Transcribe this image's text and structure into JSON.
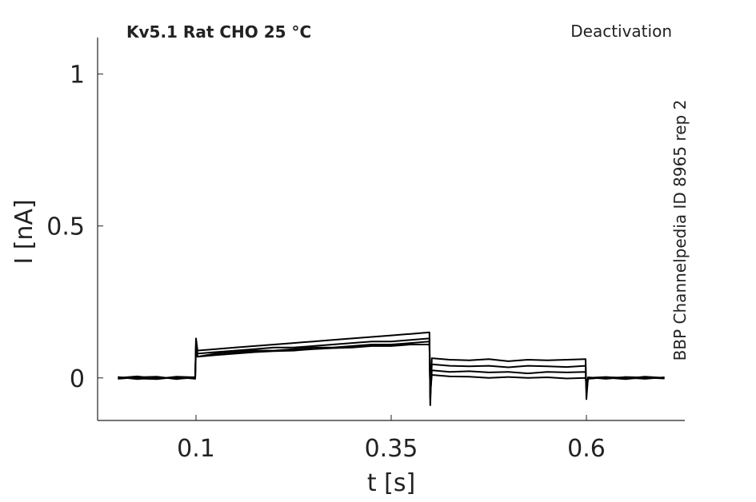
{
  "chart_data": {
    "type": "line",
    "title": "Kv5.1  Rat  CHO  25 °C",
    "annotation": "Deactivation",
    "side_note": "BBP Channelpedia ID 8965 rep 2",
    "xlabel": "t [s]",
    "ylabel": "I [nA]",
    "x": [
      0,
      0.025,
      0.05,
      0.075,
      0.099,
      0.1,
      0.102,
      0.125,
      0.15,
      0.175,
      0.2,
      0.225,
      0.25,
      0.275,
      0.3,
      0.325,
      0.35,
      0.375,
      0.399,
      0.4,
      0.402,
      0.425,
      0.45,
      0.475,
      0.5,
      0.525,
      0.55,
      0.575,
      0.599,
      0.6,
      0.602,
      0.625,
      0.65,
      0.675,
      0.7
    ],
    "series": [
      {
        "color": "#000000",
        "values": [
          0,
          0.005,
          -0.003,
          0.004,
          0.002,
          0.13,
          0.09,
          0.095,
          0.1,
          0.105,
          0.11,
          0.115,
          0.12,
          0.125,
          0.13,
          0.135,
          0.14,
          0.145,
          0.15,
          -0.09,
          0.065,
          0.06,
          0.058,
          0.062,
          0.055,
          0.06,
          0.058,
          0.06,
          0.062,
          -0.07,
          0,
          0.003,
          -0.002,
          0.004,
          0
        ]
      },
      {
        "color": "#000000",
        "values": [
          0.003,
          -0.004,
          0.002,
          -0.002,
          0,
          0.12,
          0.08,
          0.085,
          0.09,
          0.095,
          0.1,
          0.1,
          0.105,
          0.11,
          0.115,
          0.12,
          0.12,
          0.125,
          0.13,
          -0.07,
          0.045,
          0.04,
          0.038,
          0.04,
          0.035,
          0.04,
          0.038,
          0.036,
          0.04,
          -0.05,
          -0.003,
          0.002,
          0.001,
          -0.003,
          0.002
        ]
      },
      {
        "color": "#000000",
        "values": [
          -0.003,
          0.002,
          0.004,
          -0.004,
          0.003,
          0.11,
          0.07,
          0.08,
          0.085,
          0.09,
          0.09,
          0.095,
          0.1,
          0.1,
          0.105,
          0.11,
          0.11,
          0.115,
          0.12,
          -0.06,
          0.025,
          0.02,
          0.022,
          0.018,
          0.02,
          0.015,
          0.02,
          0.018,
          0.02,
          -0.04,
          0.002,
          -0.003,
          0.003,
          0.001,
          -0.002
        ]
      },
      {
        "color": "#000000",
        "values": [
          0.001,
          -0.002,
          -0.004,
          0.003,
          -0.003,
          0.1,
          0.07,
          0.075,
          0.08,
          0.085,
          0.088,
          0.09,
          0.095,
          0.098,
          0.1,
          0.105,
          0.105,
          0.11,
          0.11,
          -0.05,
          0.01,
          0.005,
          0.004,
          0,
          0.003,
          0,
          0.002,
          -0.002,
          0,
          -0.03,
          -0.002,
          0.001,
          -0.004,
          0.002,
          -0.001
        ]
      }
    ],
    "xlim": [
      -0.026,
      0.726
    ],
    "ylim": [
      -0.14,
      1.12
    ],
    "xticks": [
      0.1,
      0.35,
      0.6
    ],
    "yticks": [
      0,
      0.5,
      1
    ]
  }
}
